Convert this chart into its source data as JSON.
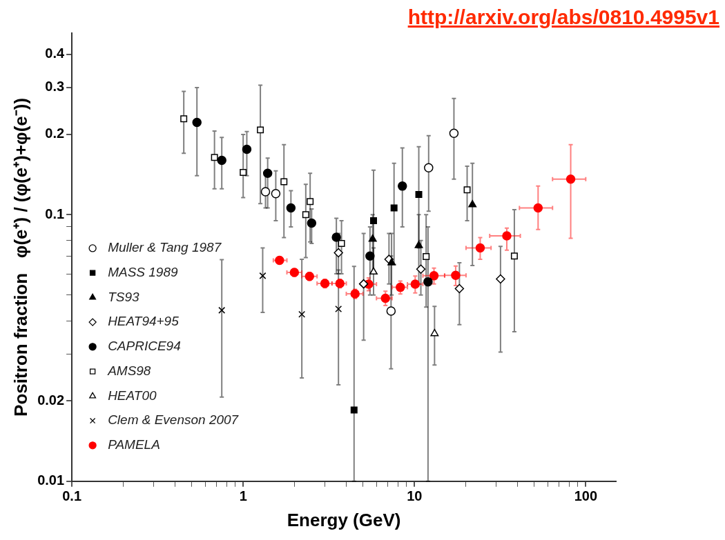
{
  "chart_data": {
    "type": "scatter",
    "xlabel": "Energy (GeV)",
    "ylabel": "Positron fraction   φ(e⁺) / (φ(e⁺)+φ(e⁻))",
    "annotations": [
      "http://arxiv.org/abs/0810.4995v1"
    ],
    "log": "xy",
    "grid": false,
    "legend": "left",
    "xlim": [
      0.1,
      150
    ],
    "xticks": [
      0.1,
      {
        "value": 0.2,
        "label": null
      },
      {
        "value": 0.3,
        "label": null
      },
      {
        "value": 0.4,
        "label": null
      },
      {
        "value": 0.5,
        "label": null
      },
      {
        "value": 0.6,
        "label": null
      },
      {
        "value": 0.7,
        "label": null
      },
      {
        "value": 0.8,
        "label": null
      },
      {
        "value": 0.9,
        "label": null
      },
      1,
      {
        "value": 2,
        "label": null
      },
      {
        "value": 3,
        "label": null
      },
      {
        "value": 4,
        "label": null
      },
      {
        "value": 5,
        "label": null
      },
      {
        "value": 6,
        "label": null
      },
      {
        "value": 7,
        "label": null
      },
      {
        "value": 8,
        "label": null
      },
      {
        "value": 9,
        "label": null
      },
      10,
      {
        "value": 20,
        "label": null
      },
      {
        "value": 30,
        "label": null
      },
      {
        "value": 40,
        "label": null
      },
      {
        "value": 50,
        "label": null
      },
      {
        "value": 60,
        "label": null
      },
      {
        "value": 70,
        "label": null
      },
      {
        "value": 80,
        "label": null
      },
      {
        "value": 90,
        "label": null
      },
      100
    ],
    "ylim": [
      0.01,
      0.48
    ],
    "yticks": [
      0.01,
      0.02,
      {
        "value": 0.03,
        "label": null
      },
      {
        "value": 0.04,
        "label": null
      },
      {
        "value": 0.05,
        "label": null
      },
      {
        "value": 0.06,
        "label": null
      },
      {
        "value": 0.07,
        "label": null
      },
      {
        "value": 0.08,
        "label": null
      },
      {
        "value": 0.09,
        "label": null
      },
      0.1,
      0.2,
      0.3,
      0.4
    ],
    "series": [
      {
        "name": "Muller & Tang 1987",
        "color": "#000000",
        "marker": "circle-open",
        "x": [
          1.35,
          1.55,
          7.3,
          12.1,
          17.0
        ],
        "values": [
          0.122,
          0.12,
          0.0435,
          0.15,
          0.202
        ],
        "errors": [
          [
            0.106,
            0.144
          ],
          [
            0.095,
            0.146
          ],
          [
            0.0264,
            0.07
          ],
          [
            0.103,
            0.198
          ],
          [
            0.136,
            0.273
          ]
        ]
      },
      {
        "name": "MASS 1989",
        "color": "#000000",
        "marker": "square",
        "x": [
          4.44,
          5.77,
          7.6,
          10.6
        ],
        "values": [
          0.0185,
          0.095,
          0.106,
          0.119
        ],
        "errors": [
          [
            0.01,
            0.064
          ],
          [
            0.06,
            0.147
          ],
          [
            0.065,
            0.156
          ],
          [
            0.075,
            0.18
          ]
        ]
      },
      {
        "name": "TS93",
        "color": "#000000",
        "marker": "triangle",
        "x": [
          5.7,
          7.35,
          10.6,
          21.8
        ],
        "values": [
          0.081,
          0.066,
          0.0766,
          0.109
        ],
        "errors": [
          [
            0.06,
            0.1
          ],
          [
            0.05,
            0.085
          ],
          [
            0.055,
            0.1
          ],
          [
            0.0645,
            0.156
          ]
        ]
      },
      {
        "name": "HEAT94+95",
        "color": "#000000",
        "marker": "diamond-open",
        "x": [
          3.6,
          5.05,
          7.1,
          10.9,
          18.3,
          31.8
        ],
        "values": [
          0.072,
          0.055,
          0.068,
          0.0625,
          0.0528,
          0.0574
        ],
        "errors": [
          [
            0.06,
            0.085
          ],
          [
            0.0338,
            0.085
          ],
          [
            0.055,
            0.085
          ],
          [
            0.05,
            0.08
          ],
          [
            0.0387,
            0.066
          ],
          [
            0.0305,
            0.076
          ]
        ]
      },
      {
        "name": "CAPRICE94",
        "color": "#000000",
        "marker": "circle",
        "x": [
          0.537,
          0.75,
          1.05,
          1.39,
          1.9,
          2.51,
          3.5,
          5.5,
          8.5,
          12.0
        ],
        "values": [
          0.222,
          0.16,
          0.176,
          0.143,
          0.106,
          0.093,
          0.0823,
          0.07,
          0.128,
          0.056
        ],
        "errors": [
          [
            0.14,
            0.3
          ],
          [
            0.125,
            0.195
          ],
          [
            0.14,
            0.205
          ],
          [
            0.106,
            0.163
          ],
          [
            0.09,
            0.123
          ],
          [
            0.078,
            0.105
          ],
          [
            0.06,
            0.097
          ],
          [
            0.05,
            0.09
          ],
          [
            0.09,
            0.178
          ],
          [
            0.01,
            0.09
          ]
        ]
      },
      {
        "name": "AMS98",
        "color": "#000000",
        "marker": "square-open",
        "x": [
          0.45,
          0.68,
          1.0,
          1.26,
          1.73,
          2.32,
          2.46,
          3.75,
          11.7,
          20.3,
          38.3
        ],
        "values": [
          0.229,
          0.164,
          0.144,
          0.208,
          0.133,
          0.1,
          0.112,
          0.078,
          0.0697,
          0.124,
          0.07
        ],
        "errors": [
          [
            0.17,
            0.29
          ],
          [
            0.125,
            0.206
          ],
          [
            0.116,
            0.2
          ],
          [
            0.11,
            0.306
          ],
          [
            0.082,
            0.183
          ],
          [
            0.069,
            0.13
          ],
          [
            0.079,
            0.143
          ],
          [
            0.06,
            0.095
          ],
          [
            0.045,
            0.1
          ],
          [
            0.095,
            0.152
          ],
          [
            0.0364,
            0.1045
          ]
        ]
      },
      {
        "name": "HEAT00",
        "color": "#000000",
        "marker": "triangle-open",
        "x": [
          5.77,
          13.1
        ],
        "values": [
          0.061,
          0.0358
        ],
        "errors": [
          [
            0.05,
            0.075
          ],
          [
            0.0273,
            0.0453
          ]
        ]
      },
      {
        "name": "Clem & Evenson 2007",
        "color": "#000000",
        "marker": "cross",
        "x": [
          0.75,
          1.3,
          2.2,
          3.6
        ],
        "values": [
          0.0438,
          0.059,
          0.0423,
          0.0443
        ],
        "errors": [
          [
            0.0207,
            0.0678
          ],
          [
            0.043,
            0.075
          ],
          [
            0.0244,
            0.068
          ],
          [
            0.023,
            0.062
          ]
        ]
      },
      {
        "name": "PAMELA",
        "color": "#ff0000",
        "marker": "circle",
        "x": [
          1.63,
          1.99,
          2.44,
          3.0,
          3.67,
          4.5,
          5.4,
          6.77,
          8.27,
          10.1,
          13.0,
          17.4,
          24.2,
          34.6,
          52.7,
          81.7
        ],
        "values": [
          0.0674,
          0.0607,
          0.0587,
          0.0552,
          0.0552,
          0.0505,
          0.0549,
          0.0486,
          0.0534,
          0.0549,
          0.059,
          0.0592,
          0.075,
          0.0833,
          0.106,
          0.136
        ],
        "errors": [
          0.002,
          0.002,
          0.002,
          0.002,
          0.002,
          0.002,
          0.003,
          0.003,
          0.003,
          0.004,
          0.004,
          0.005,
          [
            0.068,
            0.082
          ],
          [
            0.0736,
            0.089
          ],
          [
            0.088,
            0.128
          ],
          [
            0.0816,
            0.183
          ]
        ],
        "xerrors": [
          [
            1.5,
            1.8
          ],
          [
            1.8,
            2.2
          ],
          [
            2.2,
            2.7
          ],
          [
            2.7,
            3.3
          ],
          [
            3.3,
            4.0
          ],
          [
            4.0,
            5.0
          ],
          [
            5.0,
            6.0
          ],
          [
            6.0,
            7.4
          ],
          [
            7.4,
            9.1
          ],
          [
            9.1,
            11.2
          ],
          [
            11.2,
            15
          ],
          [
            15,
            20
          ],
          [
            20,
            28
          ],
          [
            27.5,
            41.5
          ],
          [
            41,
            64
          ],
          [
            64,
            100
          ]
        ]
      }
    ]
  }
}
